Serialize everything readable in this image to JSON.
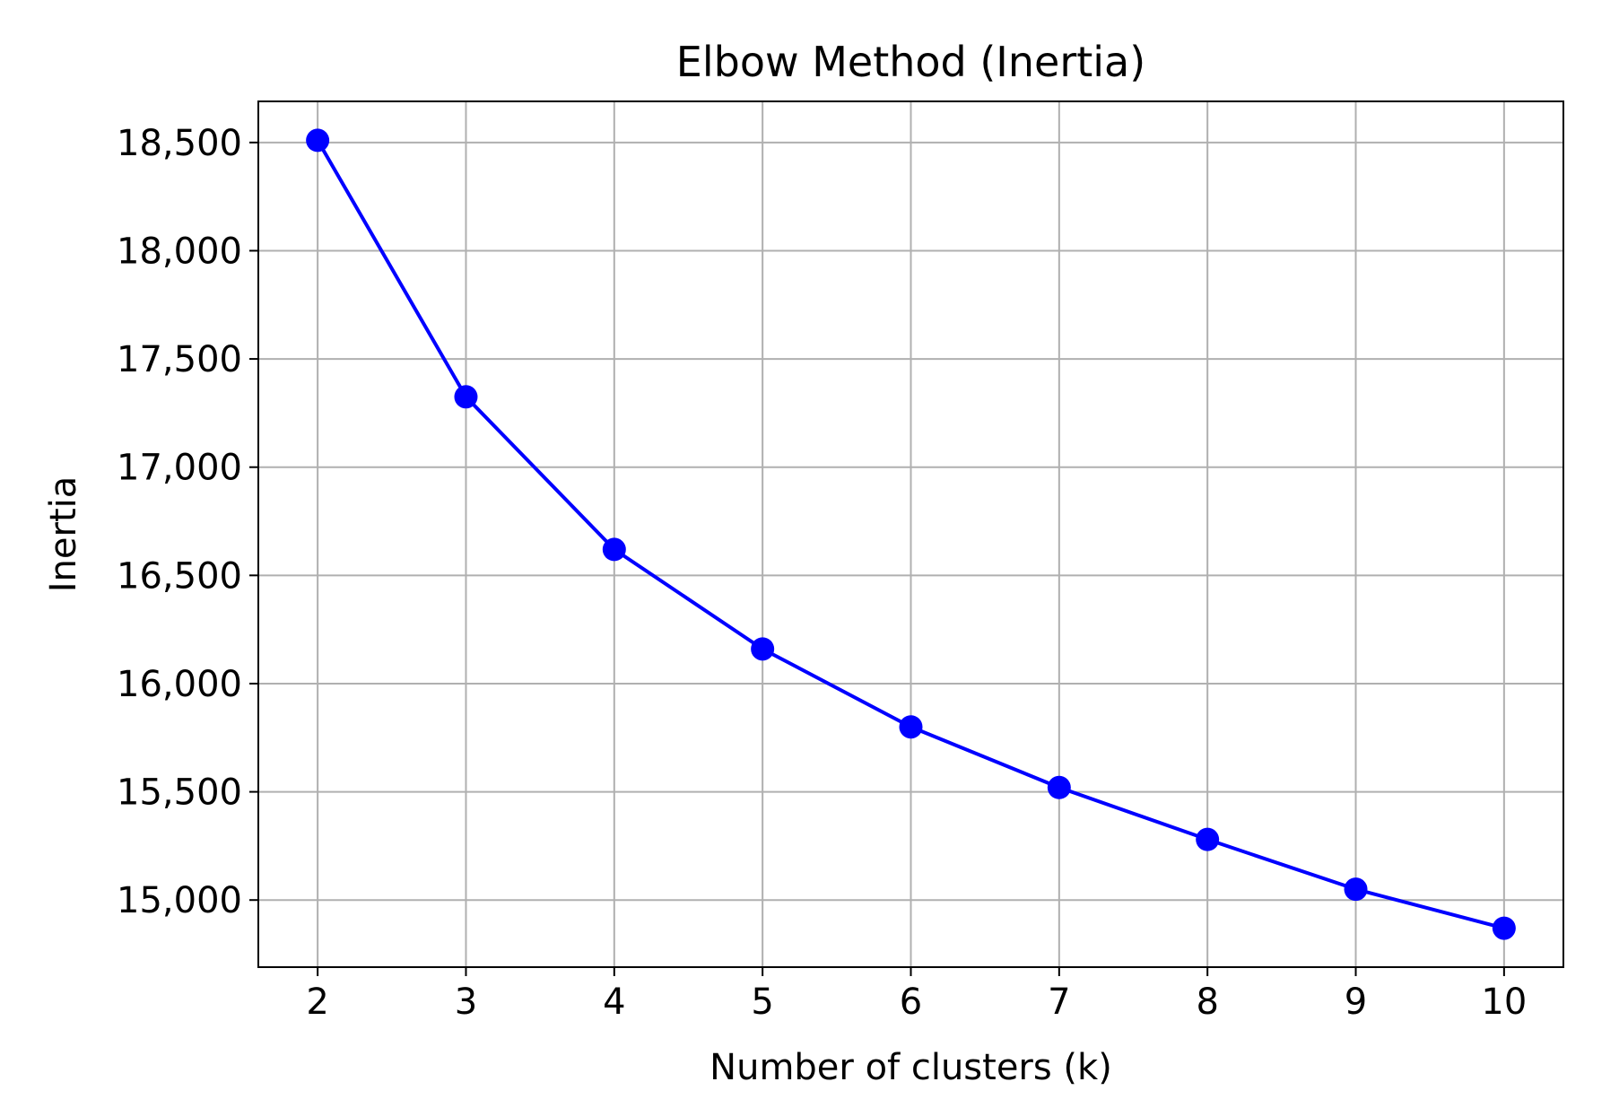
{
  "chart_data": {
    "type": "line",
    "title": "Elbow Method (Inertia)",
    "xlabel": "Number of clusters (k)",
    "ylabel": "Inertia",
    "x": [
      2,
      3,
      4,
      5,
      6,
      7,
      8,
      9,
      10
    ],
    "series": [
      {
        "values": [
          18510,
          17325,
          16620,
          16160,
          15800,
          15520,
          15280,
          15050,
          14870
        ],
        "color": "#0000ff",
        "marker": "circle"
      }
    ],
    "xlim": [
      1.6,
      10.4
    ],
    "ylim": [
      14690,
      18690
    ],
    "xticks": [
      2,
      3,
      4,
      5,
      6,
      7,
      8,
      9,
      10
    ],
    "xtick_labels": [
      "2",
      "3",
      "4",
      "5",
      "6",
      "7",
      "8",
      "9",
      "10"
    ],
    "yticks": [
      15000,
      15500,
      16000,
      16500,
      17000,
      17500,
      18000,
      18500
    ],
    "ytick_labels": [
      "15,000",
      "15,500",
      "16,000",
      "16,500",
      "17,000",
      "17,500",
      "18,000",
      "18,500"
    ],
    "grid": true,
    "legend": false
  }
}
